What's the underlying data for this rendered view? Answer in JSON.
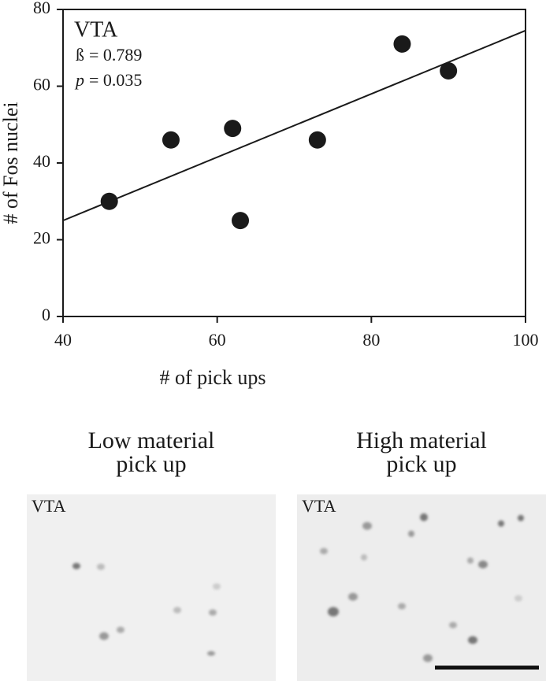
{
  "chart_data": {
    "type": "scatter",
    "x_label": "# of pick ups",
    "y_label": "# of Fos nuclei",
    "region_label": "VTA",
    "beta": {
      "symbol": "ß",
      "text": "= 0.789"
    },
    "p_value": {
      "symbol": "p",
      "text": "= 0.035"
    },
    "x": [
      46,
      54,
      62,
      63,
      73,
      84,
      90
    ],
    "values": [
      30,
      46,
      49,
      25,
      46,
      71,
      64
    ],
    "color": "#1a1a1a",
    "fit_line": {
      "x": [
        40,
        100
      ],
      "y": [
        25,
        74.5
      ]
    },
    "xlim": [
      40,
      100
    ],
    "xticks": [
      40,
      60,
      80,
      100
    ],
    "ylim": [
      0,
      80
    ],
    "yticks": [
      0,
      20,
      40,
      60,
      80
    ]
  },
  "panels": [
    {
      "title": [
        "Low material",
        "pick up"
      ],
      "label": "VTA"
    },
    {
      "title": [
        "High material",
        "pick up"
      ],
      "label": "VTA"
    }
  ]
}
